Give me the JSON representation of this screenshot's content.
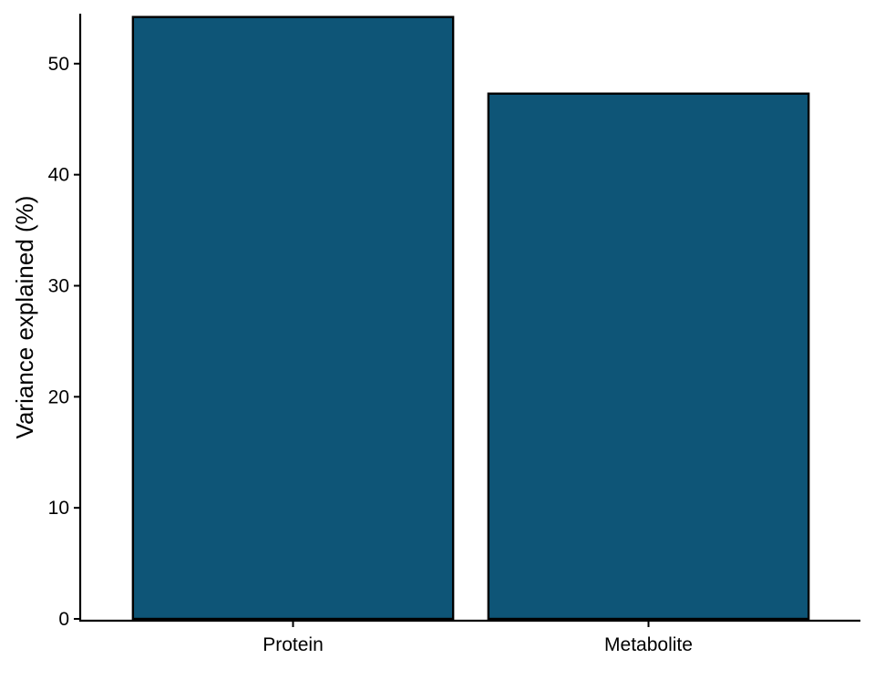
{
  "chart_data": {
    "type": "bar",
    "categories": [
      "Protein",
      "Metabolite"
    ],
    "values": [
      54.2,
      47.3
    ],
    "title": "",
    "xlabel": "",
    "ylabel": "Variance explained (%)",
    "ylim": [
      0,
      54.5
    ],
    "yticks": [
      0,
      10,
      20,
      30,
      40,
      50
    ],
    "grid": false,
    "legend": "none",
    "bar_color": "#0e5577",
    "bar_edge_color": "#000000"
  }
}
